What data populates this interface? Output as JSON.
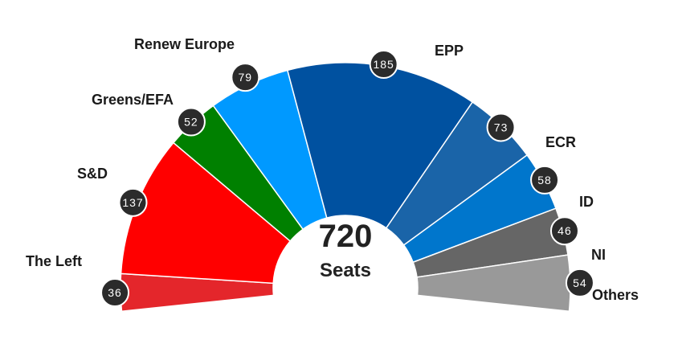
{
  "chart_data": {
    "type": "pie",
    "subtype": "semicircle-parliament",
    "total": "720",
    "total_label": "Seats",
    "segments": [
      {
        "name": "The Left",
        "value": 36,
        "color": "#e4262b"
      },
      {
        "name": "S&D",
        "value": 137,
        "color": "#ff0000"
      },
      {
        "name": "Greens/EFA",
        "value": 52,
        "color": "#008000"
      },
      {
        "name": "Renew Europe",
        "value": 79,
        "color": "#0099ff"
      },
      {
        "name": "EPP",
        "value": 185,
        "color": "#0051a0"
      },
      {
        "name": "ECR",
        "value": 73,
        "color": "#1a64a8"
      },
      {
        "name": "ID",
        "value": 58,
        "color": "#0076cc"
      },
      {
        "name": "NI",
        "value": 46,
        "color": "#666666"
      },
      {
        "name": "Others",
        "value": 54,
        "color": "#999999"
      }
    ],
    "badge_color": "#2b2b2b"
  }
}
